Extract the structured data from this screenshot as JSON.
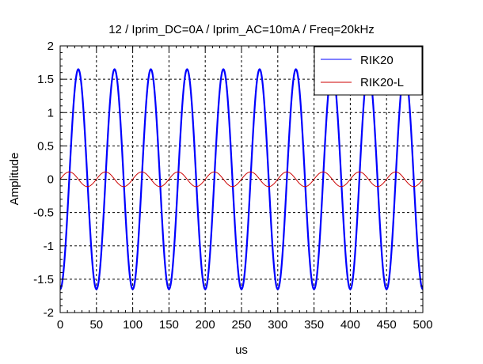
{
  "chart_data": {
    "type": "line",
    "title": "12 / Iprim_DC=0A / Iprim_AC=10mA / Freq=20kHz",
    "xlabel": "us",
    "ylabel": "Amplitude",
    "xlim": [
      0,
      500
    ],
    "ylim": [
      -2,
      2
    ],
    "xticks": [
      "0",
      "50",
      "100",
      "150",
      "200",
      "250",
      "300",
      "350",
      "400",
      "450",
      "500"
    ],
    "yticks": [
      "2",
      "1.5",
      "1",
      "0.5",
      "0",
      "-0.5",
      "-1",
      "-1.5",
      "-2"
    ],
    "grid": true,
    "legend_position": "top-right",
    "series": [
      {
        "name": "RIK20",
        "color": "#0000ff",
        "amplitude": 1.65,
        "frequency_khz": 20,
        "phase_deg": -90
      },
      {
        "name": "RIK20-L",
        "color": "#cc0000",
        "amplitude": 0.11,
        "frequency_khz": 20,
        "phase_deg": 0
      }
    ]
  }
}
